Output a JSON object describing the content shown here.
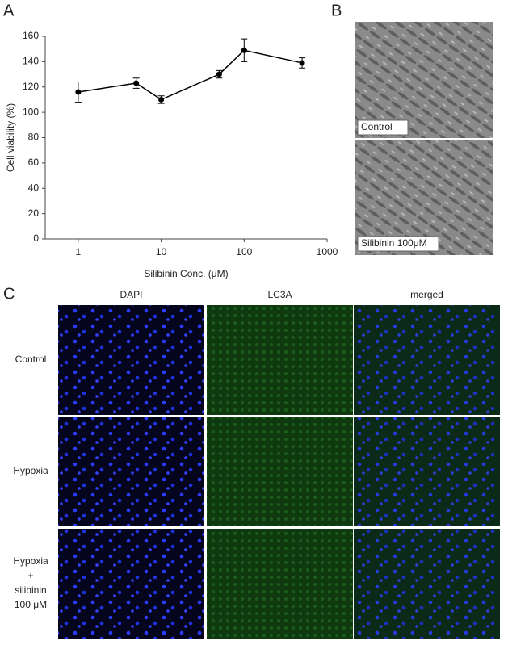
{
  "chart_data": {
    "type": "line",
    "xlabel": "Silibinin Conc. (μM)",
    "ylabel": "Cell viability (%)",
    "x": [
      1,
      5,
      10,
      50,
      100,
      500
    ],
    "values": [
      116,
      123,
      110,
      130,
      149,
      139
    ],
    "errors": [
      8,
      4,
      3,
      3,
      9,
      4
    ],
    "color": "#000000",
    "xscale": "log",
    "xlim": [
      0.4,
      1000
    ],
    "xticks": [
      1,
      10,
      100,
      1000
    ],
    "ylim": [
      0,
      160
    ],
    "yticks": [
      0,
      20,
      40,
      60,
      80,
      100,
      120,
      140,
      160
    ]
  },
  "panel_labels": [
    "A",
    "B",
    "C"
  ],
  "micrographs": {
    "labels": [
      "Control",
      "Silibinin 100μM"
    ]
  },
  "fluorescence": {
    "columns": [
      "DAPI",
      "LC3A",
      "merged"
    ],
    "rows": [
      [
        "Control"
      ],
      [
        "Hypoxia"
      ],
      [
        "Hypoxia",
        "+",
        "silibinin",
        "100 μM"
      ]
    ]
  }
}
